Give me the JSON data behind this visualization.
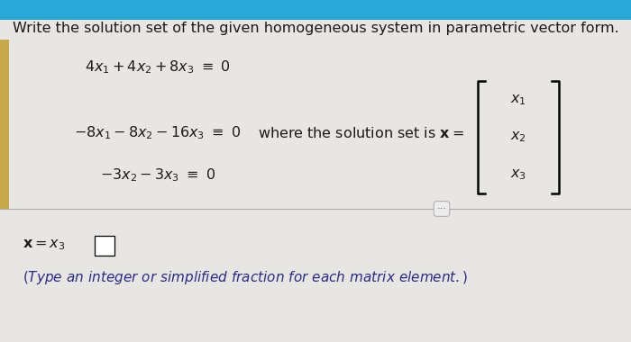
{
  "title": "Write the solution set of the given homogeneous system in parametric vector form.",
  "bg_color_top": "#29a8d8",
  "bg_color_main": "#e8e6e2",
  "bg_color_bottom": "#e8e6e2",
  "yellow_color": "#c8a84b",
  "eq_fontsize": 11.5,
  "title_fontsize": 11.5,
  "note_fontsize": 11,
  "answer_fontsize": 11.5,
  "text_color": "#1a1a1a",
  "blue_text_color": "#1a3a6b",
  "note_color": "#2a2a8a"
}
